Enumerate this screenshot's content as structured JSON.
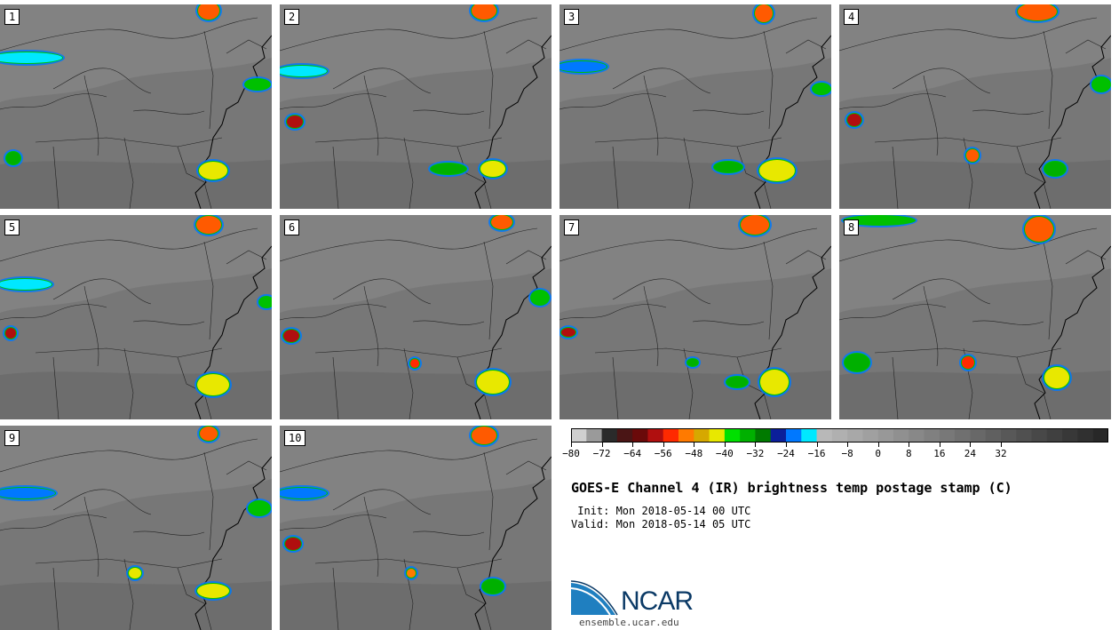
{
  "panels": [
    {
      "label": "1"
    },
    {
      "label": "2"
    },
    {
      "label": "3"
    },
    {
      "label": "4"
    },
    {
      "label": "5"
    },
    {
      "label": "6"
    },
    {
      "label": "7"
    },
    {
      "label": "8"
    },
    {
      "label": "9"
    },
    {
      "label": "10"
    }
  ],
  "colorbar": {
    "colors": [
      "#d0d0d0",
      "#9a9a9a",
      "#2a2a2a",
      "#4a1515",
      "#6a0a0a",
      "#b00f0f",
      "#ff2a00",
      "#ff7a00",
      "#d6a800",
      "#e8e800",
      "#00e000",
      "#00b000",
      "#007a00",
      "#0b1f9a",
      "#0078ff",
      "#00e8ff",
      "#b8b8b8",
      "#b0b0b0",
      "#a8a8a8",
      "#a0a0a0",
      "#989898",
      "#909090",
      "#888888",
      "#808080",
      "#787878",
      "#707070",
      "#686868",
      "#606060",
      "#585858",
      "#505050",
      "#484848",
      "#404040",
      "#383838",
      "#303030",
      "#282828"
    ],
    "ticks": [
      "−80",
      "−72",
      "−64",
      "−56",
      "−48",
      "−40",
      "−32",
      "−24",
      "−16",
      "−8",
      "0",
      "8",
      "16",
      "24",
      "32"
    ]
  },
  "title": "GOES-E Channel 4 (IR) brightness temp postage stamp (C)",
  "init": " Init: Mon 2018-05-14 00 UTC",
  "valid": "Valid: Mon 2018-05-14 05 UTC",
  "logo": {
    "text": "NCAR",
    "color": "#0b3a66",
    "swoosh": "#1f7fc0"
  },
  "site": "ensemble.ucar.edu"
}
